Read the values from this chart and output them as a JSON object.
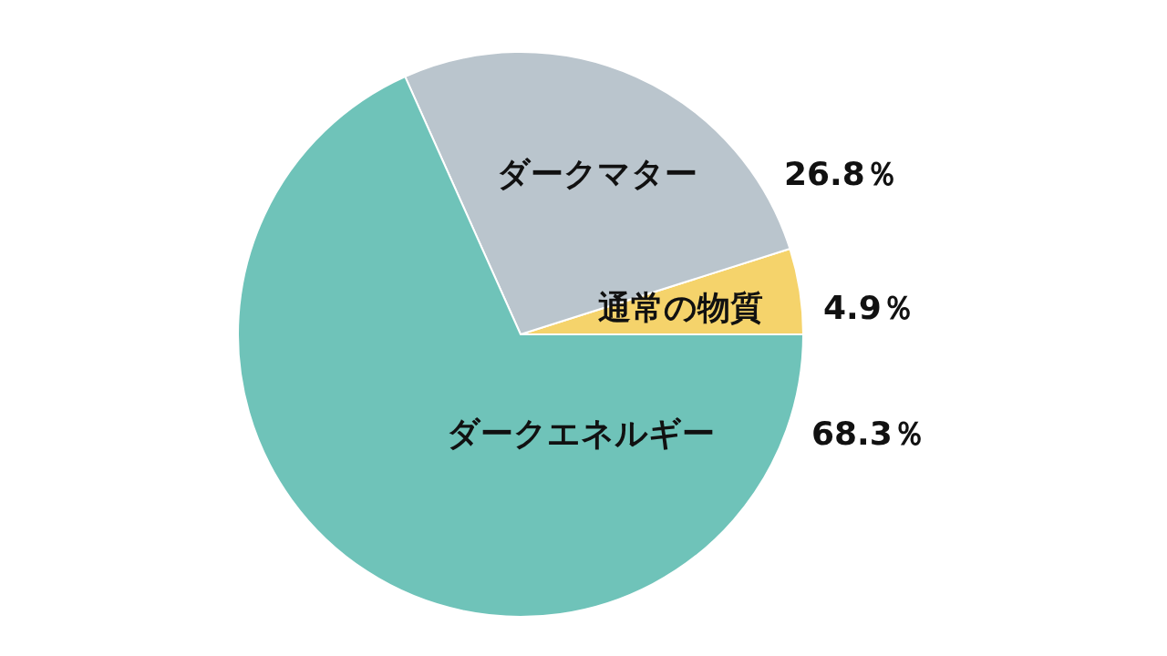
{
  "chart_data": {
    "type": "pie",
    "categories": [
      "通常の物質",
      "ダークマター",
      "ダークエネルギー"
    ],
    "values": [
      4.9,
      26.8,
      68.3
    ],
    "colors": [
      "#f5d36b",
      "#bac5cd",
      "#6fc3b9"
    ],
    "value_labels": [
      "4.9％",
      "26.8％",
      "68.3％"
    ],
    "legend": false
  }
}
